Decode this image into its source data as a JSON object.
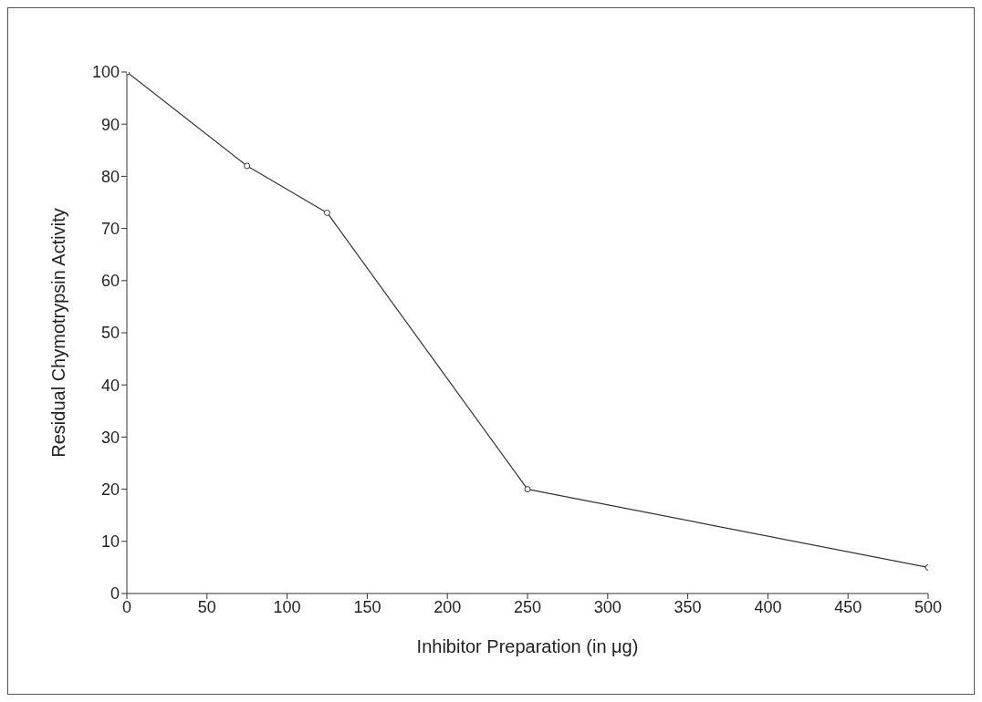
{
  "chart_data": {
    "type": "line",
    "xlabel": "Inhibitor Preparation (in μg)",
    "ylabel": "Residual Chymotrypsin Activity",
    "x": [
      0,
      75,
      125,
      250,
      500
    ],
    "series": [
      {
        "color": "#333333",
        "values": [
          100,
          82,
          73,
          20,
          5
        ]
      }
    ],
    "xlim": [
      0,
      500
    ],
    "xticks": [
      0,
      50,
      100,
      150,
      200,
      250,
      300,
      350,
      400,
      450,
      500
    ],
    "ylim": [
      0,
      100
    ],
    "yticks": [
      0,
      10,
      20,
      30,
      40,
      50,
      60,
      70,
      80,
      90,
      100
    ],
    "grid": false,
    "legend": false,
    "marker": "circle",
    "line_style": "solid"
  }
}
